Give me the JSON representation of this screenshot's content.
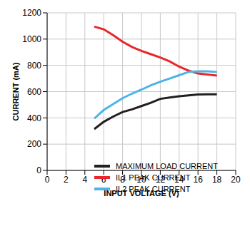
{
  "chart_data": {
    "type": "line",
    "x_label": "INPUT VOLTAGE (V)",
    "y_label": "CURRENT (mA)",
    "x": [
      5,
      6,
      7,
      8,
      9,
      10,
      11,
      12,
      13,
      14,
      15,
      16,
      17,
      18
    ],
    "series": [
      {
        "name": "MAXIMUM LOAD CURRENT",
        "color": "#231f20",
        "values": [
          315,
          370,
          410,
          445,
          465,
          490,
          515,
          545,
          555,
          565,
          572,
          578,
          580,
          580
        ]
      },
      {
        "name": "IL1 PEAK CURRENT",
        "color": "#e8262b",
        "values": [
          1095,
          1075,
          1030,
          980,
          940,
          910,
          885,
          860,
          830,
          790,
          760,
          738,
          730,
          722
        ]
      },
      {
        "name": "IL2 PEAK CURRENT",
        "color": "#4fb3e8",
        "values": [
          395,
          460,
          505,
          550,
          585,
          615,
          648,
          675,
          700,
          725,
          750,
          755,
          755,
          750
        ]
      }
    ],
    "xlim": [
      0,
      20
    ],
    "ylim": [
      0,
      1200
    ],
    "xticks": [
      0,
      2,
      4,
      6,
      8,
      10,
      12,
      14,
      16,
      18,
      20
    ],
    "yticks": [
      0,
      200,
      400,
      600,
      800,
      1000,
      1200
    ],
    "grid": true,
    "legend": "lower right"
  }
}
